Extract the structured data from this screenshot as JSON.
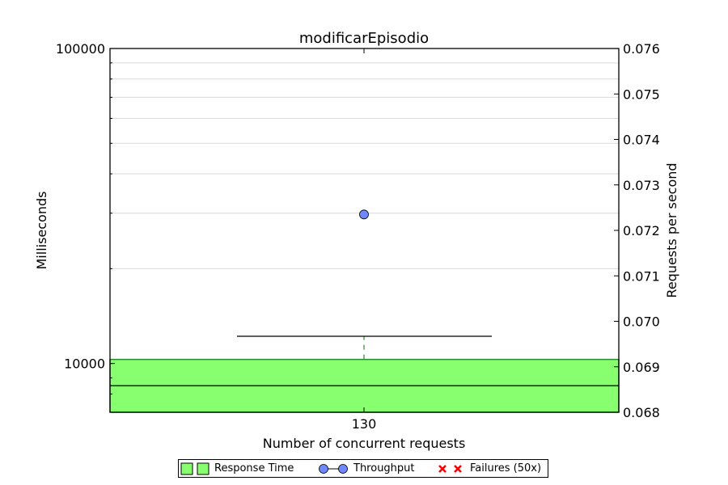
{
  "chart_data": {
    "type": "box",
    "title": "modificarEpisodio",
    "xlabel": "Number of concurrent requests",
    "ylabel": "Milliseconds",
    "y2label": "Requests per second",
    "x_ticks": [
      "130"
    ],
    "y_scale": "log",
    "y_ticks": [
      "10000",
      "100000"
    ],
    "ylim": [
      7000,
      100000
    ],
    "y2lim": [
      0.068,
      0.076
    ],
    "y2_ticks": [
      "0.068",
      "0.069",
      "0.070",
      "0.071",
      "0.072",
      "0.073",
      "0.074",
      "0.075",
      "0.076"
    ],
    "grid": true,
    "series": [
      {
        "name": "Response Time",
        "kind": "box",
        "color": "#88ff6f",
        "x": "130",
        "median": 8500,
        "q1": 7000,
        "q3": 10300,
        "whisker_high": 12200
      },
      {
        "name": "Throughput",
        "kind": "point",
        "color": "#6f88ff",
        "x": "130",
        "value": 0.07235
      },
      {
        "name": "Failures (50x)",
        "kind": "marker",
        "color": "#ff0000",
        "values": []
      }
    ],
    "legend_position": "bottom"
  }
}
